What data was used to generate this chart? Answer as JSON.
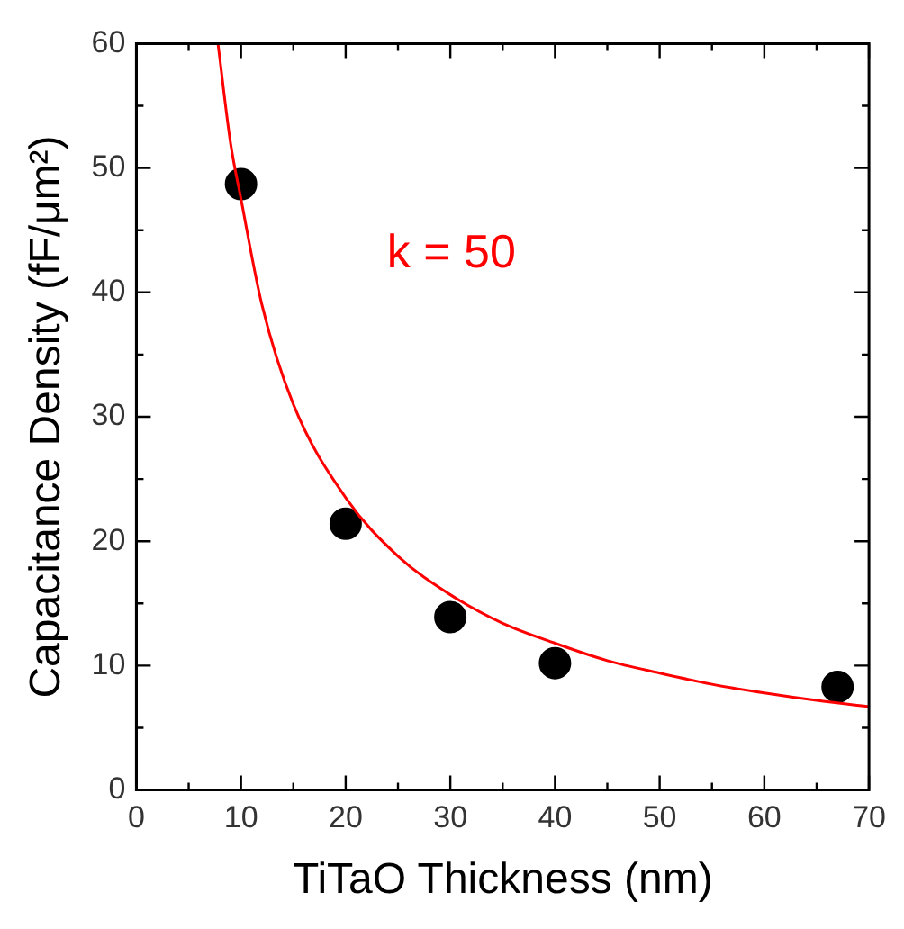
{
  "chart_data": {
    "type": "scatter",
    "xlabel": "TiTaO Thickness (nm)",
    "ylabel": "Capacitance Density (fF/μm²)",
    "annotations": [
      "k = 50"
    ],
    "xlim": [
      0,
      70
    ],
    "ylim": [
      0,
      60
    ],
    "xticks": [
      0,
      {
        "value": 5,
        "label": null
      },
      10,
      {
        "value": 15,
        "label": null
      },
      20,
      {
        "value": 25,
        "label": null
      },
      30,
      {
        "value": 35,
        "label": null
      },
      40,
      {
        "value": 45,
        "label": null
      },
      50,
      {
        "value": 55,
        "label": null
      },
      60,
      {
        "value": 65,
        "label": null
      },
      70
    ],
    "yticks": [
      0,
      {
        "value": 5,
        "label": null
      },
      10,
      {
        "value": 15,
        "label": null
      },
      20,
      {
        "value": 25,
        "label": null
      },
      30,
      {
        "value": 35,
        "label": null
      },
      40,
      {
        "value": 45,
        "label": null
      },
      50,
      {
        "value": 55,
        "label": null
      },
      60
    ],
    "grid": false,
    "legend": false,
    "series": [
      {
        "type": "line",
        "marker": "none",
        "color": "#ff0000",
        "x": [
          7.8,
          9,
          10,
          12,
          15,
          20,
          25,
          30,
          35,
          40,
          45,
          50,
          55,
          60,
          65,
          70
        ],
        "values": [
          60,
          52,
          47.5,
          39,
          31,
          23.5,
          18.8,
          15.7,
          13.4,
          11.8,
          10.4,
          9.4,
          8.5,
          7.8,
          7.2,
          6.7
        ]
      },
      {
        "marker": "circle",
        "color": "#000000",
        "x": [
          10,
          20,
          30,
          40,
          67
        ],
        "values": [
          48.7,
          21.4,
          13.9,
          10.2,
          8.3
        ]
      }
    ]
  }
}
